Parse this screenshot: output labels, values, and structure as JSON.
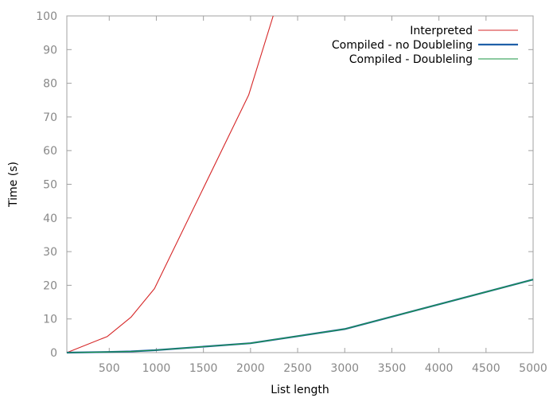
{
  "chart_data": {
    "type": "line",
    "xlabel": "List length",
    "ylabel": "Time (s)",
    "xlim": [
      50,
      5000
    ],
    "ylim": [
      0,
      100
    ],
    "x_ticks": [
      500,
      1000,
      1500,
      2000,
      2500,
      3000,
      3500,
      4000,
      4500,
      5000
    ],
    "y_ticks": [
      0,
      10,
      20,
      30,
      40,
      50,
      60,
      70,
      80,
      90,
      100
    ],
    "grid": false,
    "legend_position": "top-right",
    "series": [
      {
        "name": "Interpreted",
        "color": "#d62728",
        "width": "thin",
        "points": [
          [
            50,
            0.0
          ],
          [
            480,
            4.8
          ],
          [
            730,
            10.5
          ],
          [
            980,
            19.0
          ],
          [
            1980,
            76.5
          ],
          [
            2240,
            100
          ]
        ]
      },
      {
        "name": "Compiled - no Doubleling",
        "color": "#1f5fa8",
        "width": "thick",
        "points": [
          [
            50,
            0.0
          ],
          [
            480,
            0.2
          ],
          [
            730,
            0.35
          ],
          [
            980,
            0.7
          ],
          [
            2000,
            2.8
          ],
          [
            3000,
            7.0
          ],
          [
            5000,
            21.7
          ]
        ]
      },
      {
        "name": "Compiled - Doubleling",
        "color": "#1a9641",
        "width": "thin",
        "points": [
          [
            50,
            0.0
          ],
          [
            480,
            0.2
          ],
          [
            730,
            0.35
          ],
          [
            980,
            0.7
          ],
          [
            2000,
            2.8
          ],
          [
            3000,
            7.0
          ],
          [
            5000,
            21.7
          ]
        ]
      }
    ]
  }
}
